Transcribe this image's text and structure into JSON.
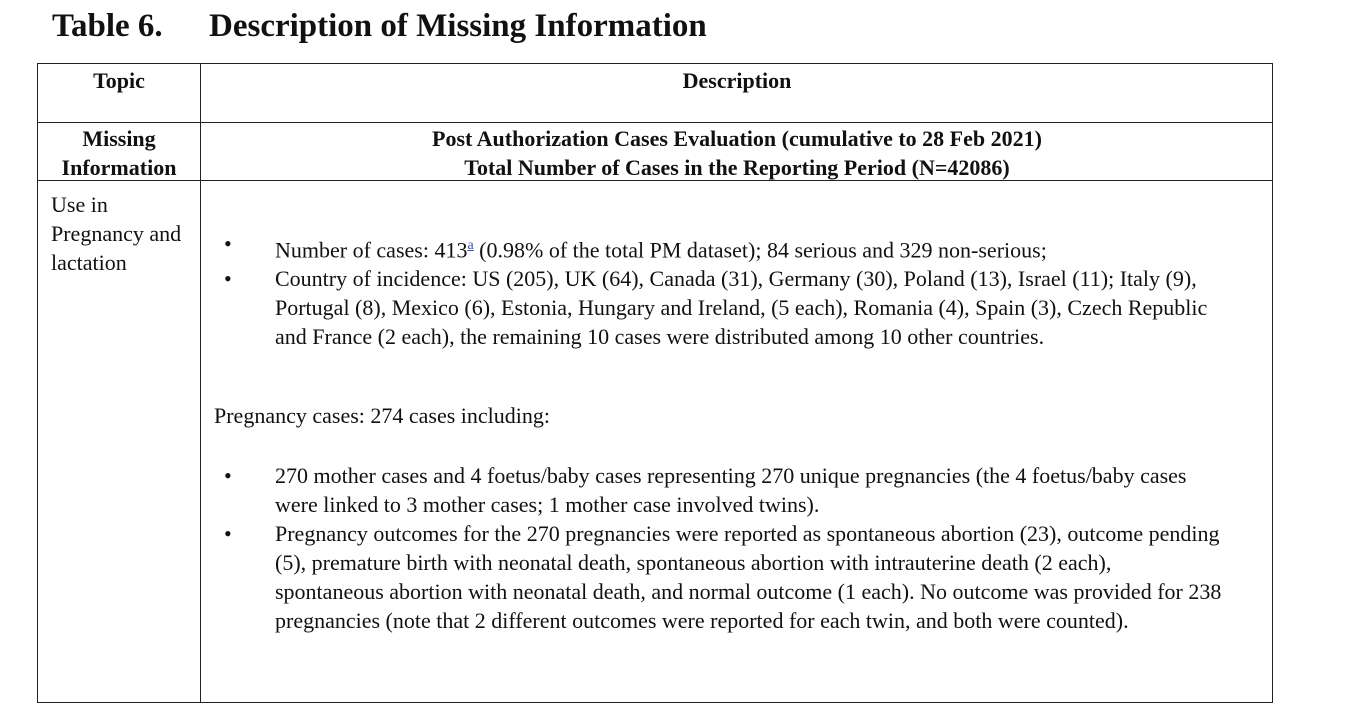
{
  "title": {
    "number": "Table 6.",
    "text": "Description of Missing Information"
  },
  "headers": {
    "topic": "Topic",
    "description": "Description"
  },
  "subheader": {
    "topic": "Missing Information",
    "line1": "Post Authorization Cases Evaluation (cumulative to 28 Feb 2021)",
    "line2": "Total Number of Cases in the Reporting Period (N=42086)"
  },
  "row": {
    "topic": "Use in Pregnancy and lactation",
    "bullets1": [
      {
        "pre": "Number of cases: 413",
        "sup": "a",
        "post": " (0.98% of the total PM dataset); 84 serious and 329 non-serious;"
      },
      {
        "text": "Country of incidence: US (205), UK (64), Canada (31), Germany (30), Poland (13), Israel (11); Italy (9), Portugal (8), Mexico (6), Estonia, Hungary and Ireland, (5 each), Romania (4), Spain (3), Czech Republic and France (2 each), the remaining 10 cases were distributed among 10 other countries."
      }
    ],
    "pregnancy_heading": "Pregnancy cases: 274 cases including:",
    "bullets2": [
      "270 mother cases and 4 foetus/baby cases representing 270 unique pregnancies (the 4 foetus/baby cases were linked to 3 mother cases; 1 mother case involved twins).",
      "Pregnancy outcomes for the 270 pregnancies were reported as spontaneous abortion (23), outcome pending (5), premature birth with neonatal death, spontaneous abortion with intrauterine death (2 each), spontaneous abortion with neonatal death, and normal outcome (1 each). No outcome was provided for 238 pregnancies (note that 2 different outcomes were reported for each twin, and both were counted)."
    ],
    "bullet_symbol": "•"
  }
}
